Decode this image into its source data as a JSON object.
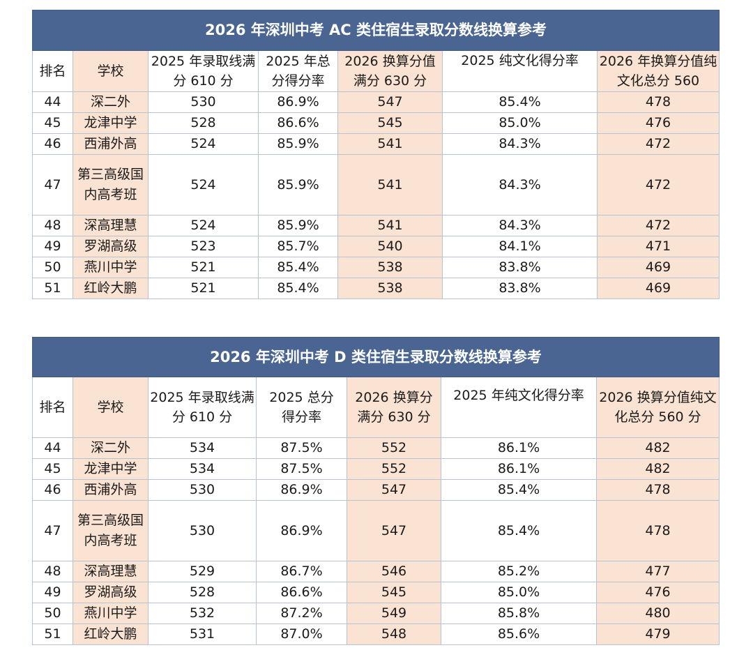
{
  "tables": [
    {
      "title": "2026 年深圳中考 AC 类住宿生录取分数线换算参考",
      "headers": [
        "排名",
        "学校",
        "2025 年录取线满分 610 分",
        "2025 年总分得分率",
        "2026 换算分值满分 630 分",
        "2025 纯文化得分率",
        "2026 年换算分值纯文化总分 560"
      ],
      "rows": [
        [
          "44",
          "深二外",
          "530",
          "86.9%",
          "547",
          "85.4%",
          "478"
        ],
        [
          "45",
          "龙津中学",
          "528",
          "86.6%",
          "545",
          "85.0%",
          "476"
        ],
        [
          "46",
          "西浦外高",
          "524",
          "85.9%",
          "541",
          "84.3%",
          "472"
        ],
        [
          "47",
          "第三高级国内高考班",
          "524",
          "85.9%",
          "541",
          "84.3%",
          "472"
        ],
        [
          "48",
          "深高理慧",
          "524",
          "85.9%",
          "541",
          "84.3%",
          "472"
        ],
        [
          "49",
          "罗湖高级",
          "523",
          "85.7%",
          "540",
          "84.1%",
          "471"
        ],
        [
          "50",
          "燕川中学",
          "521",
          "85.4%",
          "538",
          "83.8%",
          "469"
        ],
        [
          "51",
          "红岭大鹏",
          "521",
          "85.4%",
          "538",
          "83.8%",
          "469"
        ]
      ]
    },
    {
      "title": "2026 年深圳中考 D 类住宿生录取分数线换算参考",
      "headers": [
        "排名",
        "学校",
        "2025 年录取线满分 610 分",
        "2025 总分得分率",
        "2026 换算分满分 630 分",
        "2025 年纯文化得分率",
        "2026 换算分值纯文化总分 560 分"
      ],
      "rows": [
        [
          "44",
          "深二外",
          "534",
          "87.5%",
          "552",
          "86.1%",
          "482"
        ],
        [
          "45",
          "龙津中学",
          "534",
          "87.5%",
          "552",
          "86.1%",
          "482"
        ],
        [
          "46",
          "西浦外高",
          "530",
          "86.9%",
          "547",
          "85.4%",
          "478"
        ],
        [
          "47",
          "第三高级国内高考班",
          "530",
          "86.9%",
          "547",
          "85.4%",
          "478"
        ],
        [
          "48",
          "深高理慧",
          "529",
          "86.7%",
          "546",
          "85.2%",
          "477"
        ],
        [
          "49",
          "罗湖高级",
          "528",
          "86.6%",
          "545",
          "85.0%",
          "476"
        ],
        [
          "50",
          "燕川中学",
          "532",
          "87.2%",
          "549",
          "85.8%",
          "480"
        ],
        [
          "51",
          "红岭大鹏",
          "531",
          "87.0%",
          "548",
          "85.6%",
          "479"
        ]
      ]
    }
  ],
  "colors": {
    "title_bg": "#4a6591",
    "accent_peach": "#fbe3d3",
    "grid": "#b9c3cf"
  }
}
